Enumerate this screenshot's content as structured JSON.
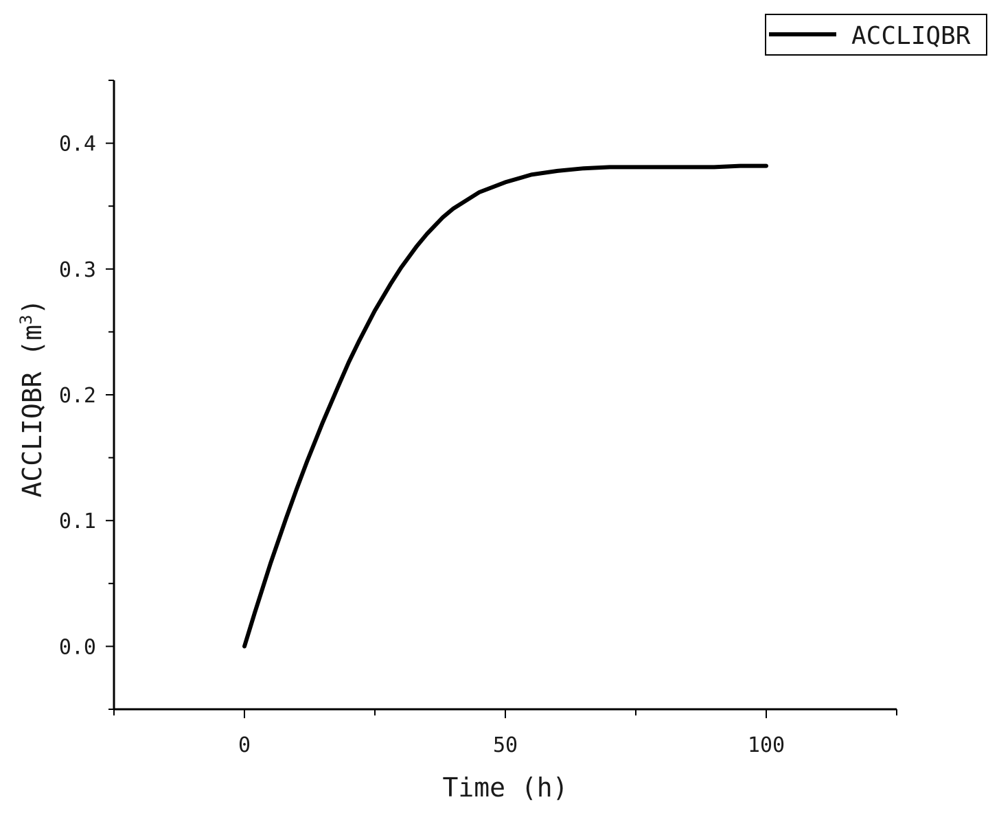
{
  "chart_data": {
    "type": "line",
    "title": "",
    "xlabel": "Time (h)",
    "ylabel_main": "ACCLIQBR (m",
    "ylabel_sup": "3",
    "ylabel_close": ")",
    "ylabel": "ACCLIQBR (m3)",
    "xlim": [
      -25,
      125
    ],
    "ylim": [
      -0.05,
      0.45
    ],
    "x_ticks": [
      0,
      50,
      100
    ],
    "x_tick_labels": [
      "0",
      "50",
      "100"
    ],
    "x_minor_ticks": [
      -25,
      25,
      75,
      125
    ],
    "y_ticks": [
      0.0,
      0.1,
      0.2,
      0.3,
      0.4
    ],
    "y_tick_labels": [
      "0.0",
      "0.1",
      "0.2",
      "0.3",
      "0.4"
    ],
    "y_minor_ticks": [
      -0.05,
      0.05,
      0.15,
      0.25,
      0.35,
      0.45
    ],
    "grid": false,
    "legend_position": "top-right",
    "series": [
      {
        "name": "ACCLIQBR",
        "color": "#000000",
        "x": [
          0,
          2,
          5,
          8,
          10,
          12,
          15,
          18,
          20,
          22,
          25,
          28,
          30,
          33,
          35,
          38,
          40,
          45,
          50,
          55,
          60,
          65,
          70,
          75,
          80,
          85,
          90,
          95,
          100
        ],
        "y": [
          0.0,
          0.027,
          0.066,
          0.102,
          0.125,
          0.147,
          0.178,
          0.207,
          0.226,
          0.243,
          0.267,
          0.288,
          0.301,
          0.318,
          0.328,
          0.341,
          0.348,
          0.361,
          0.369,
          0.375,
          0.378,
          0.38,
          0.381,
          0.381,
          0.381,
          0.381,
          0.381,
          0.382,
          0.382
        ]
      }
    ]
  }
}
